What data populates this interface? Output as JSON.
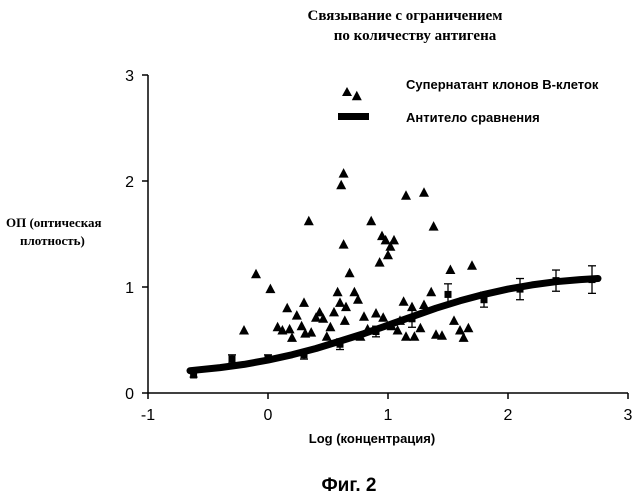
{
  "chart_data": {
    "type": "scatter",
    "title_lines": [
      "Связывание с ограничением",
      "по количеству антигена"
    ],
    "xlabel": "Log (концентрация)",
    "ylabel_lines": [
      "ОП (оптическая",
      "плотность)"
    ],
    "xlim": [
      -1,
      3
    ],
    "ylim": [
      0,
      3
    ],
    "x_ticks": [
      -1,
      0,
      1,
      2,
      3
    ],
    "y_ticks": [
      0,
      1,
      2,
      3
    ],
    "x_tick_labels": [
      "-1",
      "0",
      "1",
      "2",
      "3"
    ],
    "y_tick_labels": [
      "0",
      "1",
      "2",
      "3"
    ],
    "grid": false,
    "legend_position": "top-right",
    "legend": [
      {
        "label": "Супернатант клонов В-клеток",
        "marker": "triangle"
      },
      {
        "label": "Антитело сравнения",
        "marker": "thick-line"
      }
    ],
    "series": [
      {
        "name": "Супернатант клонов В-клеток",
        "style": "triangle",
        "points": [
          [
            -0.2,
            0.59
          ],
          [
            -0.1,
            1.12
          ],
          [
            0.02,
            0.98
          ],
          [
            0.08,
            0.62
          ],
          [
            0.12,
            0.59
          ],
          [
            0.16,
            0.8
          ],
          [
            0.18,
            0.6
          ],
          [
            0.2,
            0.52
          ],
          [
            0.24,
            0.73
          ],
          [
            0.28,
            0.63
          ],
          [
            0.3,
            0.85
          ],
          [
            0.31,
            0.56
          ],
          [
            0.34,
            1.62
          ],
          [
            0.36,
            0.57
          ],
          [
            0.4,
            0.71
          ],
          [
            0.43,
            0.76
          ],
          [
            0.46,
            0.7
          ],
          [
            0.49,
            0.53
          ],
          [
            0.52,
            0.62
          ],
          [
            0.55,
            0.76
          ],
          [
            0.58,
            0.95
          ],
          [
            0.6,
            0.85
          ],
          [
            0.61,
            1.96
          ],
          [
            0.63,
            2.07
          ],
          [
            0.63,
            1.4
          ],
          [
            0.64,
            0.68
          ],
          [
            0.65,
            0.81
          ],
          [
            0.68,
            1.13
          ],
          [
            0.72,
            0.95
          ],
          [
            0.74,
            2.8
          ],
          [
            0.75,
            0.88
          ],
          [
            0.77,
            0.53
          ],
          [
            0.8,
            0.72
          ],
          [
            0.83,
            0.6
          ],
          [
            0.86,
            1.62
          ],
          [
            0.9,
            0.75
          ],
          [
            0.93,
            1.23
          ],
          [
            0.95,
            1.48
          ],
          [
            0.96,
            0.71
          ],
          [
            0.98,
            1.44
          ],
          [
            1.0,
            1.3
          ],
          [
            1.02,
            1.38
          ],
          [
            1.03,
            0.63
          ],
          [
            1.05,
            1.44
          ],
          [
            1.08,
            0.59
          ],
          [
            1.1,
            0.68
          ],
          [
            1.13,
            0.86
          ],
          [
            1.15,
            1.86
          ],
          [
            1.15,
            0.53
          ],
          [
            1.2,
            0.81
          ],
          [
            1.22,
            0.53
          ],
          [
            1.27,
            0.61
          ],
          [
            1.3,
            1.89
          ],
          [
            1.3,
            0.83
          ],
          [
            1.36,
            0.95
          ],
          [
            1.38,
            1.57
          ],
          [
            1.4,
            0.55
          ],
          [
            1.45,
            0.54
          ],
          [
            1.52,
            1.16
          ],
          [
            1.55,
            0.68
          ],
          [
            1.6,
            0.59
          ],
          [
            1.63,
            0.52
          ],
          [
            1.67,
            0.61
          ],
          [
            1.7,
            1.2
          ]
        ]
      },
      {
        "name": "Антитело сравнения",
        "style": "square-errorbar",
        "points": [
          [
            -0.62,
            0.17,
            0.02
          ],
          [
            -0.3,
            0.32,
            0.04
          ],
          [
            0.0,
            0.33,
            0.03
          ],
          [
            0.3,
            0.36,
            0.04
          ],
          [
            0.6,
            0.46,
            0.05
          ],
          [
            0.9,
            0.58,
            0.05
          ],
          [
            1.2,
            0.7,
            0.08
          ],
          [
            1.5,
            0.93,
            0.1
          ],
          [
            1.8,
            0.88,
            0.07
          ],
          [
            2.1,
            0.98,
            0.1
          ],
          [
            2.4,
            1.06,
            0.1
          ],
          [
            2.7,
            1.07,
            0.13
          ]
        ],
        "fit": [
          [
            -0.65,
            0.21
          ],
          [
            -0.4,
            0.24
          ],
          [
            -0.2,
            0.27
          ],
          [
            0.0,
            0.31
          ],
          [
            0.2,
            0.36
          ],
          [
            0.4,
            0.42
          ],
          [
            0.6,
            0.49
          ],
          [
            0.8,
            0.56
          ],
          [
            1.0,
            0.64
          ],
          [
            1.2,
            0.72
          ],
          [
            1.4,
            0.8
          ],
          [
            1.6,
            0.87
          ],
          [
            1.8,
            0.93
          ],
          [
            2.0,
            0.98
          ],
          [
            2.2,
            1.02
          ],
          [
            2.4,
            1.05
          ],
          [
            2.6,
            1.07
          ],
          [
            2.75,
            1.08
          ]
        ]
      }
    ]
  },
  "caption": "Фиг. 2"
}
